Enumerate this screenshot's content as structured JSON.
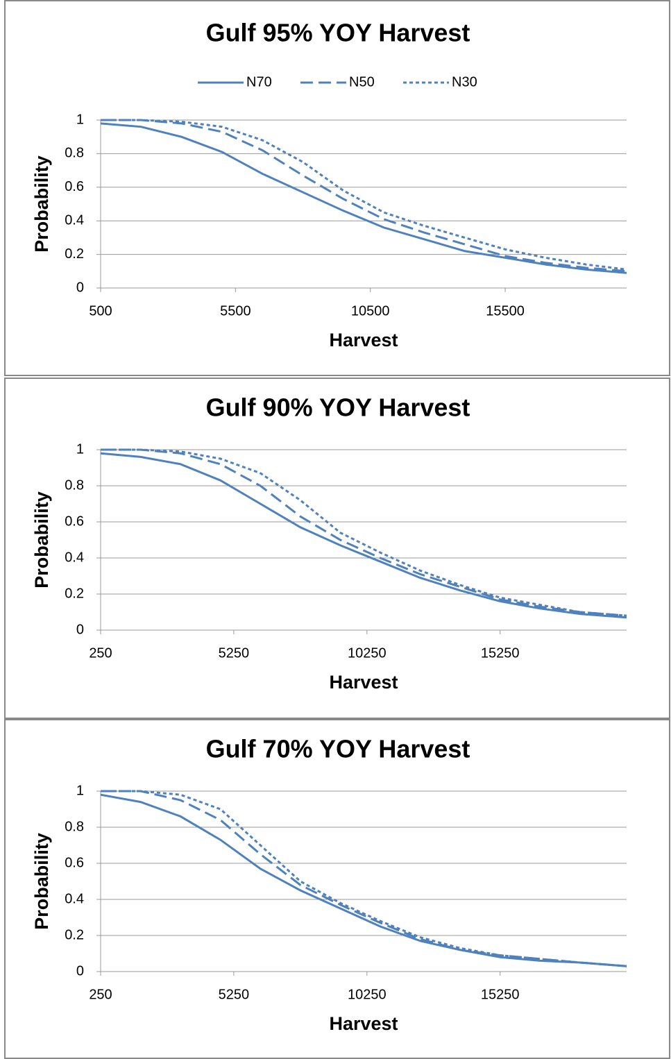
{
  "chart_data": [
    {
      "type": "line",
      "title": "Gulf 95% YOY Harvest",
      "x_label": "Harvest",
      "y_label": "Probability",
      "x": [
        500,
        2000,
        3500,
        5000,
        6500,
        8000,
        9500,
        11000,
        12500,
        14000,
        15500,
        17000,
        18500,
        20000
      ],
      "series": [
        {
          "name": "N70",
          "color": "#4f81bd",
          "dash": "solid",
          "values": [
            0.98,
            0.96,
            0.9,
            0.81,
            0.68,
            0.57,
            0.46,
            0.36,
            0.29,
            0.22,
            0.18,
            0.14,
            0.11,
            0.09
          ]
        },
        {
          "name": "N50",
          "color": "#4f81bd",
          "dash": "dashed",
          "values": [
            1,
            1,
            0.98,
            0.93,
            0.82,
            0.67,
            0.53,
            0.41,
            0.33,
            0.26,
            0.19,
            0.15,
            0.12,
            0.1
          ]
        },
        {
          "name": "N30",
          "color": "#4f81bd",
          "dash": "dotted",
          "values": [
            1,
            1,
            0.99,
            0.96,
            0.88,
            0.75,
            0.58,
            0.45,
            0.37,
            0.3,
            0.23,
            0.18,
            0.14,
            0.11
          ]
        }
      ],
      "xlim": [
        500,
        20000
      ],
      "xticks": [
        500,
        5500,
        10500,
        15500
      ],
      "ylim": [
        0,
        1
      ],
      "yticks": [
        0,
        0.2,
        0.4,
        0.6,
        0.8,
        1
      ],
      "grid": true,
      "legend": "top"
    },
    {
      "type": "line",
      "title": "Gulf 90% YOY Harvest",
      "x_label": "Harvest",
      "y_label": "Probability",
      "x": [
        250,
        1750,
        3250,
        4750,
        6250,
        7750,
        9250,
        10750,
        12250,
        13750,
        15250,
        16750,
        18250,
        20000
      ],
      "series": [
        {
          "color": "#4f81bd",
          "dash": "solid",
          "values": [
            0.98,
            0.96,
            0.92,
            0.83,
            0.7,
            0.57,
            0.47,
            0.38,
            0.29,
            0.22,
            0.16,
            0.12,
            0.09,
            0.07
          ]
        },
        {
          "color": "#4f81bd",
          "dash": "dashed",
          "values": [
            1,
            1,
            0.98,
            0.92,
            0.8,
            0.63,
            0.5,
            0.4,
            0.31,
            0.24,
            0.17,
            0.13,
            0.1,
            0.08
          ]
        },
        {
          "color": "#4f81bd",
          "dash": "dotted",
          "values": [
            1,
            1,
            0.99,
            0.95,
            0.87,
            0.72,
            0.54,
            0.43,
            0.33,
            0.25,
            0.18,
            0.14,
            0.1,
            0.08
          ]
        }
      ],
      "xlim": [
        250,
        20000
      ],
      "xticks": [
        250,
        5250,
        10250,
        15250
      ],
      "ylim": [
        0,
        1
      ],
      "yticks": [
        0,
        0.2,
        0.4,
        0.6,
        0.8,
        1
      ],
      "grid": true
    },
    {
      "type": "line",
      "title": "Gulf 70% YOY Harvest",
      "x_label": "Harvest",
      "y_label": "Probability",
      "x": [
        250,
        1750,
        3250,
        4750,
        6250,
        7750,
        9250,
        10750,
        12250,
        13750,
        15250,
        16750,
        18250,
        20000
      ],
      "series": [
        {
          "color": "#4f81bd",
          "dash": "solid",
          "values": [
            0.98,
            0.94,
            0.86,
            0.73,
            0.57,
            0.45,
            0.35,
            0.25,
            0.17,
            0.12,
            0.08,
            0.06,
            0.05,
            0.03
          ]
        },
        {
          "color": "#4f81bd",
          "dash": "dashed",
          "values": [
            1,
            1,
            0.95,
            0.84,
            0.65,
            0.48,
            0.37,
            0.27,
            0.18,
            0.12,
            0.09,
            0.07,
            0.05,
            0.03
          ]
        },
        {
          "color": "#4f81bd",
          "dash": "dotted",
          "values": [
            1,
            1,
            0.98,
            0.9,
            0.7,
            0.5,
            0.38,
            0.28,
            0.19,
            0.13,
            0.09,
            0.07,
            0.05,
            0.03
          ]
        }
      ],
      "xlim": [
        250,
        20000
      ],
      "xticks": [
        250,
        5250,
        10250,
        15250
      ],
      "ylim": [
        0,
        1
      ],
      "yticks": [
        0,
        0.2,
        0.4,
        0.6,
        0.8,
        1
      ],
      "grid": true
    }
  ]
}
